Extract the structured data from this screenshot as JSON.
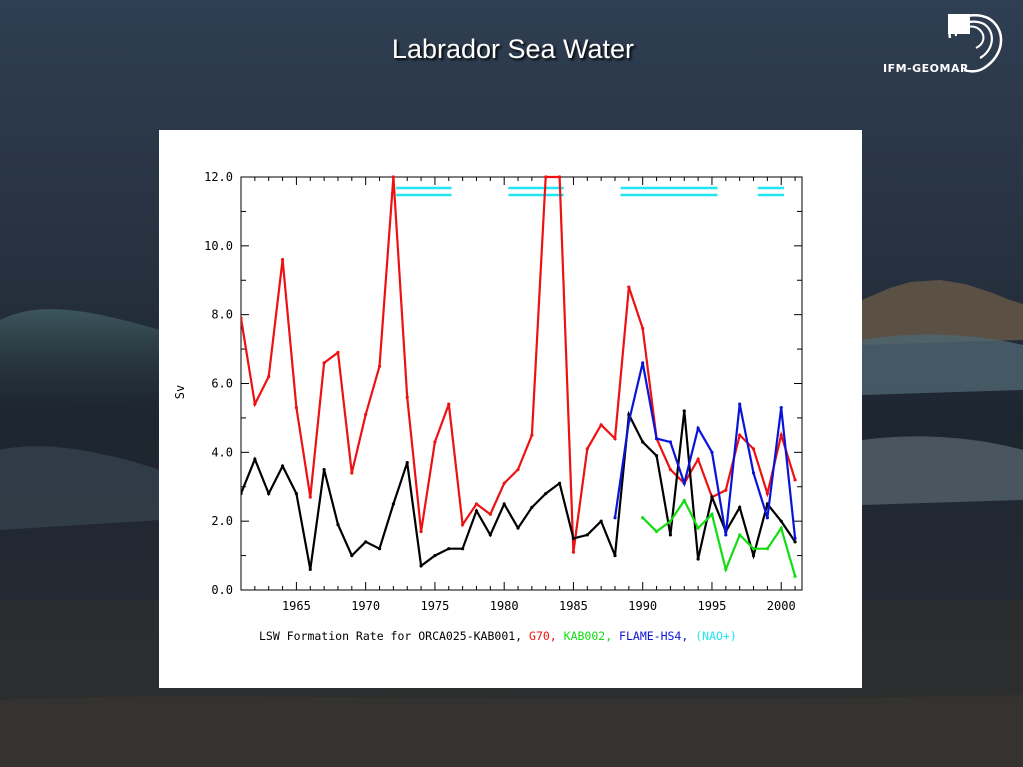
{
  "slide": {
    "title": "Labrador Sea Water",
    "logo_text": "IFM-GEOMAR"
  },
  "colors": {
    "background_dark": "#1e2733",
    "panel": "#ffffff",
    "axis": "#000000",
    "kab001": "#000000",
    "g70": "#ee1111",
    "kab002": "#11dd11",
    "flame": "#0a14d8",
    "nao": "#22e4f2"
  },
  "chart_data": {
    "type": "line",
    "xlabel": "",
    "ylabel": "Sv",
    "xlim": [
      1961,
      2001.5
    ],
    "ylim": [
      0,
      12
    ],
    "xticks": [
      1965,
      1970,
      1975,
      1980,
      1985,
      1990,
      1995,
      2000
    ],
    "yticks": [
      "0.0",
      "2.0",
      "4.0",
      "6.0",
      "8.0",
      "10.0",
      "12.0"
    ],
    "caption_parts": [
      {
        "text": "LSW Formation Rate for ORCA025-KAB001, ",
        "color": "#000000"
      },
      {
        "text": "G70, ",
        "color": "#ee1111"
      },
      {
        "text": "KAB002, ",
        "color": "#11dd11"
      },
      {
        "text": "FLAME-HS4, ",
        "color": "#0a14d8"
      },
      {
        "text": "(NAO+)",
        "color": "#22e4f2"
      }
    ],
    "series": [
      {
        "name": "G70",
        "color": "#ee1111",
        "x": [
          1961,
          1962,
          1963,
          1964,
          1965,
          1966,
          1967,
          1968,
          1969,
          1970,
          1971,
          1972,
          1973,
          1974,
          1975,
          1976,
          1977,
          1978,
          1979,
          1980,
          1981,
          1982,
          1983,
          1984,
          1985,
          1986,
          1987,
          1988,
          1989,
          1990,
          1991,
          1992,
          1993,
          1994,
          1995,
          1996,
          1997,
          1998,
          1999,
          2000,
          2001
        ],
        "y": [
          7.9,
          5.4,
          6.2,
          9.6,
          5.3,
          2.7,
          6.6,
          6.9,
          3.4,
          5.1,
          6.5,
          12.0,
          5.6,
          1.7,
          4.3,
          5.4,
          1.9,
          2.5,
          2.2,
          3.1,
          3.5,
          4.5,
          12.0,
          12.0,
          1.1,
          4.1,
          4.8,
          4.4,
          8.8,
          7.6,
          4.4,
          3.5,
          3.1,
          3.8,
          2.7,
          2.9,
          4.5,
          4.1,
          2.8,
          4.5,
          3.2
        ]
      },
      {
        "name": "ORCA025-KAB001",
        "color": "#000000",
        "x": [
          1961,
          1962,
          1963,
          1964,
          1965,
          1966,
          1967,
          1968,
          1969,
          1970,
          1971,
          1972,
          1973,
          1974,
          1975,
          1976,
          1977,
          1978,
          1979,
          1980,
          1981,
          1982,
          1983,
          1984,
          1985,
          1986,
          1987,
          1988,
          1989,
          1990,
          1991,
          1992,
          1993,
          1994,
          1995,
          1996,
          1997,
          1998,
          1999,
          2000,
          2001
        ],
        "y": [
          2.8,
          3.8,
          2.8,
          3.6,
          2.8,
          0.6,
          3.5,
          1.9,
          1.0,
          1.4,
          1.2,
          2.5,
          3.7,
          0.7,
          1.0,
          1.2,
          1.2,
          2.3,
          1.6,
          2.5,
          1.8,
          2.4,
          2.8,
          3.1,
          1.5,
          1.6,
          2.0,
          1.0,
          5.1,
          4.3,
          3.9,
          1.6,
          5.2,
          0.9,
          2.7,
          1.7,
          2.4,
          1.0,
          2.5,
          2.0,
          1.4
        ]
      },
      {
        "name": "KAB002",
        "color": "#11dd11",
        "x": [
          1990,
          1991,
          1992,
          1993,
          1994,
          1995,
          1996,
          1997,
          1998,
          1999,
          2000,
          2001
        ],
        "y": [
          2.1,
          1.7,
          2.0,
          2.6,
          1.8,
          2.2,
          0.6,
          1.6,
          1.2,
          1.2,
          1.8,
          0.4
        ]
      },
      {
        "name": "FLAME-HS4",
        "color": "#0a14d8",
        "x": [
          1988,
          1989,
          1990,
          1991,
          1992,
          1993,
          1994,
          1995,
          1996,
          1997,
          1998,
          1999,
          2000,
          2001
        ],
        "y": [
          2.1,
          4.9,
          6.6,
          4.4,
          4.3,
          3.1,
          4.7,
          4.0,
          1.6,
          5.4,
          3.4,
          2.1,
          5.3,
          1.5
        ]
      }
    ],
    "nao_positive_periods": [
      [
        1972.2,
        1976.2
      ],
      [
        1980.3,
        1984.3
      ],
      [
        1988.4,
        1995.4
      ],
      [
        1998.3,
        2000.2
      ]
    ]
  }
}
